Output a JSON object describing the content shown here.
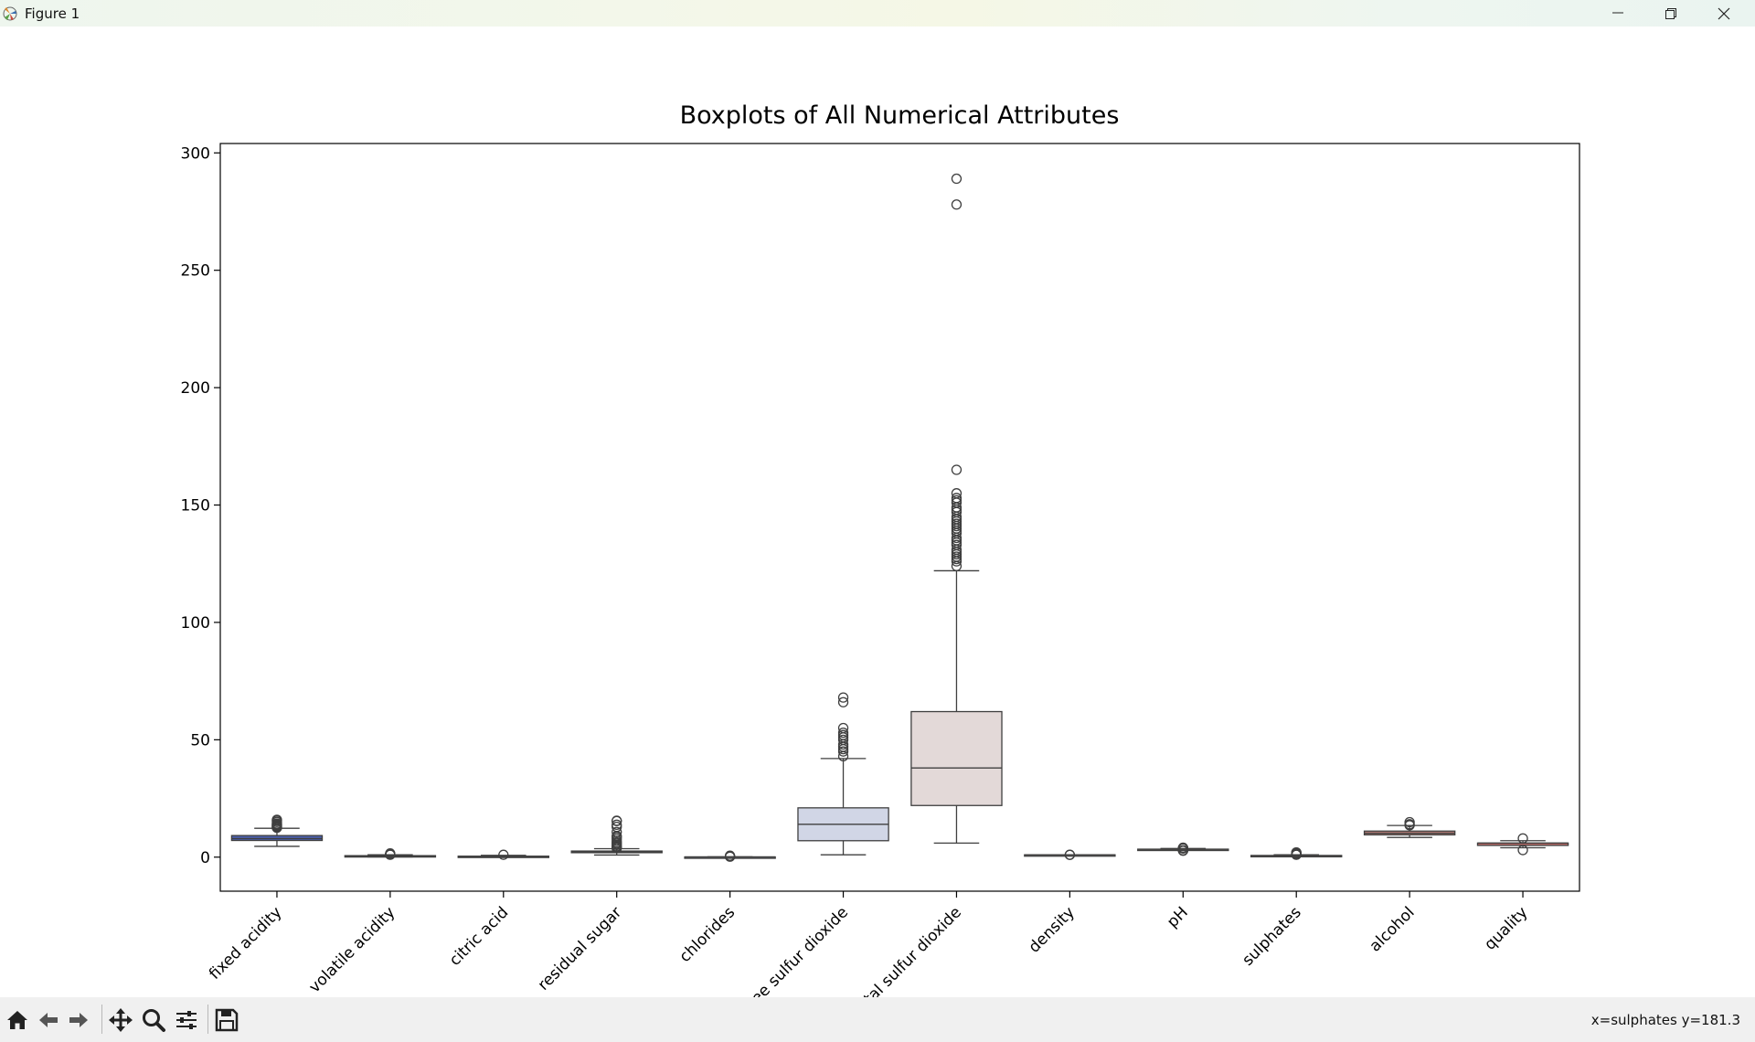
{
  "window": {
    "title": "Figure 1",
    "icon": "matplotlib-icon",
    "controls": [
      "minimize-icon",
      "restore-icon",
      "close-icon"
    ]
  },
  "toolbar": {
    "buttons": [
      "home-icon",
      "back-arrow-icon",
      "forward-arrow-icon",
      "pan-icon",
      "zoom-icon",
      "configure-subplots-icon",
      "save-icon"
    ],
    "coords": "x=sulphates y=181.3"
  },
  "chart_data": {
    "type": "boxplot",
    "title": "Boxplots of All Numerical Attributes",
    "xlabel": "",
    "ylabel": "",
    "ylim": [
      -14.5,
      304
    ],
    "yticks": [
      0,
      50,
      100,
      150,
      200,
      250,
      300
    ],
    "grid": false,
    "categories": [
      "fixed acidity",
      "volatile acidity",
      "citric acid",
      "residual sugar",
      "chlorides",
      "free sulfur dioxide",
      "total sulfur dioxide",
      "density",
      "pH",
      "sulphates",
      "alcohol",
      "quality"
    ],
    "series": [
      {
        "category": "fixed acidity",
        "color": "#4b5fa8",
        "whislo": 4.6,
        "q1": 7.1,
        "med": 7.9,
        "q3": 9.2,
        "whishi": 12.3,
        "fliers": [
          12.5,
          12.8,
          13.0,
          13.3,
          13.5,
          13.8,
          14.0,
          14.3,
          15.0,
          15.6,
          15.9
        ]
      },
      {
        "category": "volatile acidity",
        "color": "#6273b6",
        "whislo": 0.12,
        "q1": 0.39,
        "med": 0.52,
        "q3": 0.64,
        "whishi": 1.01,
        "fliers": [
          1.04,
          1.09,
          1.13,
          1.18,
          1.24,
          1.33,
          1.58
        ]
      },
      {
        "category": "citric acid",
        "color": "#8593c8",
        "whislo": 0.0,
        "q1": 0.09,
        "med": 0.26,
        "q3": 0.42,
        "whishi": 0.79,
        "fliers": [
          1.0
        ]
      },
      {
        "category": "residual sugar",
        "color": "#a4afd6",
        "whislo": 0.9,
        "q1": 1.9,
        "med": 2.2,
        "q3": 2.6,
        "whishi": 3.6,
        "fliers": [
          3.8,
          4.2,
          4.6,
          5.2,
          5.8,
          6.3,
          7.0,
          7.9,
          8.6,
          9.0,
          10.7,
          12.9,
          13.8,
          15.4,
          15.5
        ]
      },
      {
        "category": "chlorides",
        "color": "#bec6e0",
        "whislo": 0.012,
        "q1": 0.07,
        "med": 0.079,
        "q3": 0.09,
        "whishi": 0.119,
        "fliers": [
          0.2,
          0.35,
          0.45,
          0.61
        ]
      },
      {
        "category": "free sulfur dioxide",
        "color": "#d1d6e6",
        "whislo": 1.0,
        "q1": 7.0,
        "med": 14.0,
        "q3": 21.0,
        "whishi": 42.0,
        "fliers": [
          43,
          45,
          46,
          47,
          48,
          50,
          51,
          52,
          53,
          55,
          66,
          68
        ]
      },
      {
        "category": "total sulfur dioxide",
        "color": "#e3d9d8",
        "whislo": 6.0,
        "q1": 22.0,
        "med": 38.0,
        "q3": 62.0,
        "whishi": 122.0,
        "fliers": [
          124,
          126,
          127,
          128,
          129,
          130,
          131,
          133,
          134,
          135,
          136,
          138,
          139,
          140,
          141,
          142,
          143,
          144,
          145,
          147,
          148,
          149,
          151,
          152,
          153,
          155,
          165,
          278,
          289
        ]
      },
      {
        "category": "density",
        "color": "#e6ccc9",
        "whislo": 0.99,
        "q1": 0.9956,
        "med": 0.9968,
        "q3": 0.9978,
        "whishi": 1.001,
        "fliers": [
          1.003,
          0.9901
        ]
      },
      {
        "category": "pH",
        "color": "#dfb9b5",
        "whislo": 2.92,
        "q1": 3.21,
        "med": 3.31,
        "q3": 3.4,
        "whishi": 3.68,
        "fliers": [
          2.74,
          2.86,
          2.88,
          3.72,
          3.78,
          3.85,
          3.9,
          4.01
        ]
      },
      {
        "category": "sulphates",
        "color": "#d4a19d",
        "whislo": 0.33,
        "q1": 0.55,
        "med": 0.62,
        "q3": 0.73,
        "whishi": 1.0,
        "fliers": [
          1.02,
          1.08,
          1.14,
          1.2,
          1.26,
          1.36,
          1.59,
          1.62,
          1.95,
          2.0
        ]
      },
      {
        "category": "alcohol",
        "color": "#c9867e",
        "whislo": 8.4,
        "q1": 9.5,
        "med": 10.2,
        "q3": 11.1,
        "whishi": 13.5,
        "fliers": [
          13.6,
          14.0,
          14.9
        ]
      },
      {
        "category": "quality",
        "color": "#b86a66",
        "whislo": 4.0,
        "q1": 5.0,
        "med": 6.0,
        "q3": 6.0,
        "whishi": 7.0,
        "fliers": [
          3.0,
          8.0
        ]
      }
    ]
  }
}
